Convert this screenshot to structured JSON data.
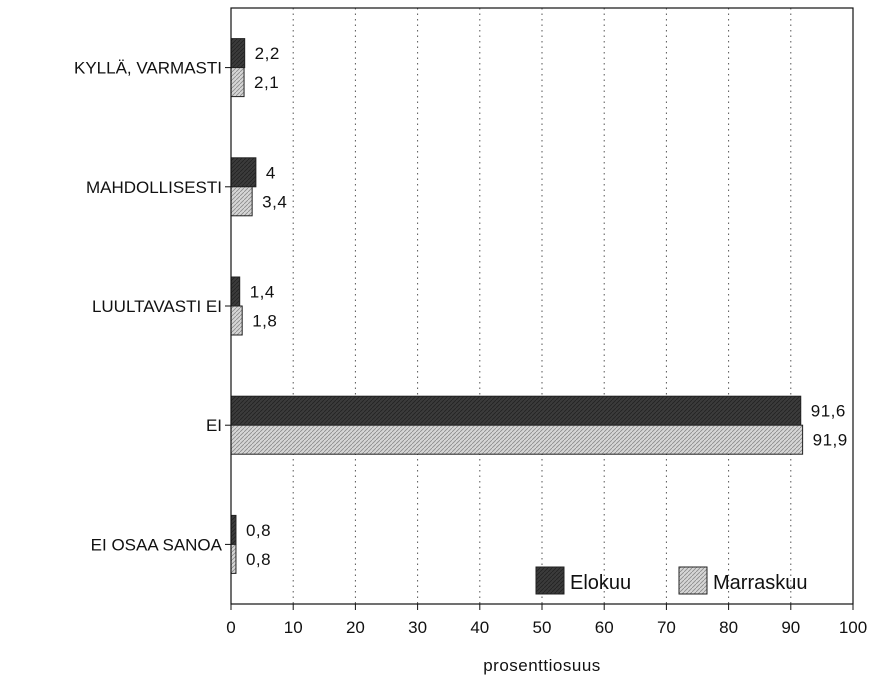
{
  "chart_data": {
    "type": "bar",
    "orientation": "horizontal",
    "categories": [
      "KYLLÄ, VARMASTI",
      "MAHDOLLISESTI",
      "LUULTAVASTI EI",
      "EI",
      "EI OSAA SANOA"
    ],
    "series": [
      {
        "name": "Elokuu",
        "values": [
          2.2,
          4,
          1.4,
          91.6,
          0.8
        ],
        "labels": [
          "2,2",
          "4",
          "1,4",
          "91,6",
          "0,8"
        ],
        "color": "#3a3a3a"
      },
      {
        "name": "Marraskuu",
        "values": [
          2.1,
          3.4,
          1.8,
          91.9,
          0.8
        ],
        "labels": [
          "2,1",
          "3,4",
          "1,8",
          "91,9",
          "0,8"
        ],
        "color": "#cfcfcf"
      }
    ],
    "xlabel": "prosenttiosuus",
    "ylabel": "",
    "xlim": [
      0,
      100
    ],
    "xticks": [
      0,
      10,
      20,
      30,
      40,
      50,
      60,
      70,
      80,
      90,
      100
    ],
    "grid": "vertical-dotted",
    "legend_position": "bottom-right"
  }
}
